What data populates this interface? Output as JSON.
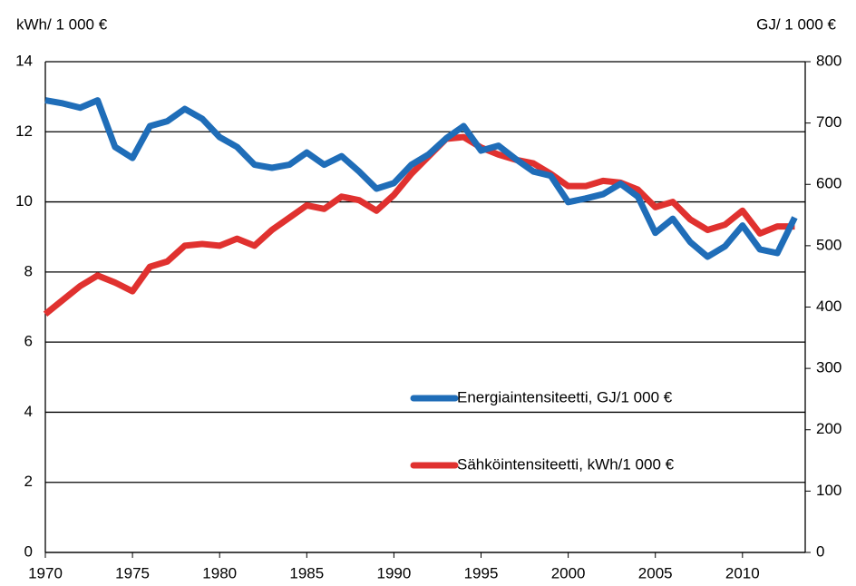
{
  "chart_data": {
    "type": "line",
    "ylabel": "kWh/ 1 000 €",
    "y2label": "GJ/ 1 000 €",
    "x": [
      1970,
      1971,
      1972,
      1973,
      1974,
      1975,
      1976,
      1977,
      1978,
      1979,
      1980,
      1981,
      1982,
      1983,
      1984,
      1985,
      1986,
      1987,
      1988,
      1989,
      1990,
      1991,
      1992,
      1993,
      1994,
      1995,
      1996,
      1997,
      1998,
      1999,
      2000,
      2001,
      2002,
      2003,
      2004,
      2005,
      2006,
      2007,
      2008,
      2009,
      2010,
      2011,
      2012,
      2013
    ],
    "series": [
      {
        "name": "Energiaintensiteetti, GJ/1 000 €",
        "color": "#1f6db8",
        "axis": "y2",
        "values": [
          737,
          732,
          725,
          737,
          661,
          643,
          695,
          703,
          723,
          707,
          677,
          661,
          632,
          627,
          632,
          652,
          632,
          646,
          621,
          593,
          602,
          632,
          649,
          675,
          695,
          655,
          663,
          641,
          621,
          614,
          571,
          577,
          584,
          601,
          580,
          521,
          544,
          506,
          482,
          499,
          533,
          494,
          488,
          546
        ]
      },
      {
        "name": "Sähköintensiteetti, kWh/1 000 €",
        "color": "#e0312f",
        "values": [
          6.8,
          7.2,
          7.6,
          7.9,
          7.7,
          7.45,
          8.15,
          8.3,
          8.75,
          8.8,
          8.75,
          8.95,
          8.75,
          9.2,
          9.55,
          9.9,
          9.8,
          10.15,
          10.05,
          9.75,
          10.2,
          10.8,
          11.3,
          11.8,
          11.85,
          11.55,
          11.35,
          11.2,
          11.1,
          10.8,
          10.45,
          10.45,
          10.6,
          10.55,
          10.35,
          9.85,
          10.0,
          9.5,
          9.2,
          9.35,
          9.75,
          9.1,
          9.3,
          9.3
        ]
      }
    ],
    "xlim": [
      1970,
      2013.6
    ],
    "xticks": [
      1970,
      1975,
      1980,
      1985,
      1990,
      1995,
      2000,
      2005,
      2010
    ],
    "ylim": [
      0,
      14
    ],
    "yticks": [
      0,
      2,
      4,
      6,
      8,
      10,
      12,
      14
    ],
    "y2lim": [
      0,
      800
    ],
    "y2ticks": [
      0,
      100,
      200,
      300,
      400,
      500,
      600,
      700,
      800
    ],
    "grid": true
  }
}
